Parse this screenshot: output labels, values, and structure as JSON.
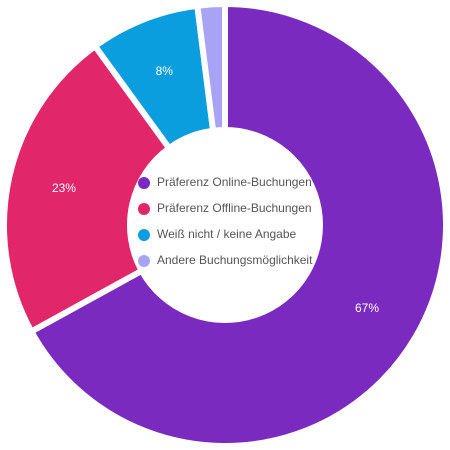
{
  "chart_data": {
    "type": "donut",
    "categories": [
      "Präferenz Online-Buchungen",
      "Präferenz Offline-Buchungen",
      "Weiß nicht / keine Angabe",
      "Andere Buchungsmöglichkeit"
    ],
    "values": [
      67,
      23,
      8,
      2
    ],
    "value_labels": [
      "67%",
      "23%",
      "8%",
      null
    ],
    "colors": [
      "#7b2abf",
      "#e2266a",
      "#0a9ede",
      "#a9a3f5"
    ],
    "legend": "center"
  }
}
